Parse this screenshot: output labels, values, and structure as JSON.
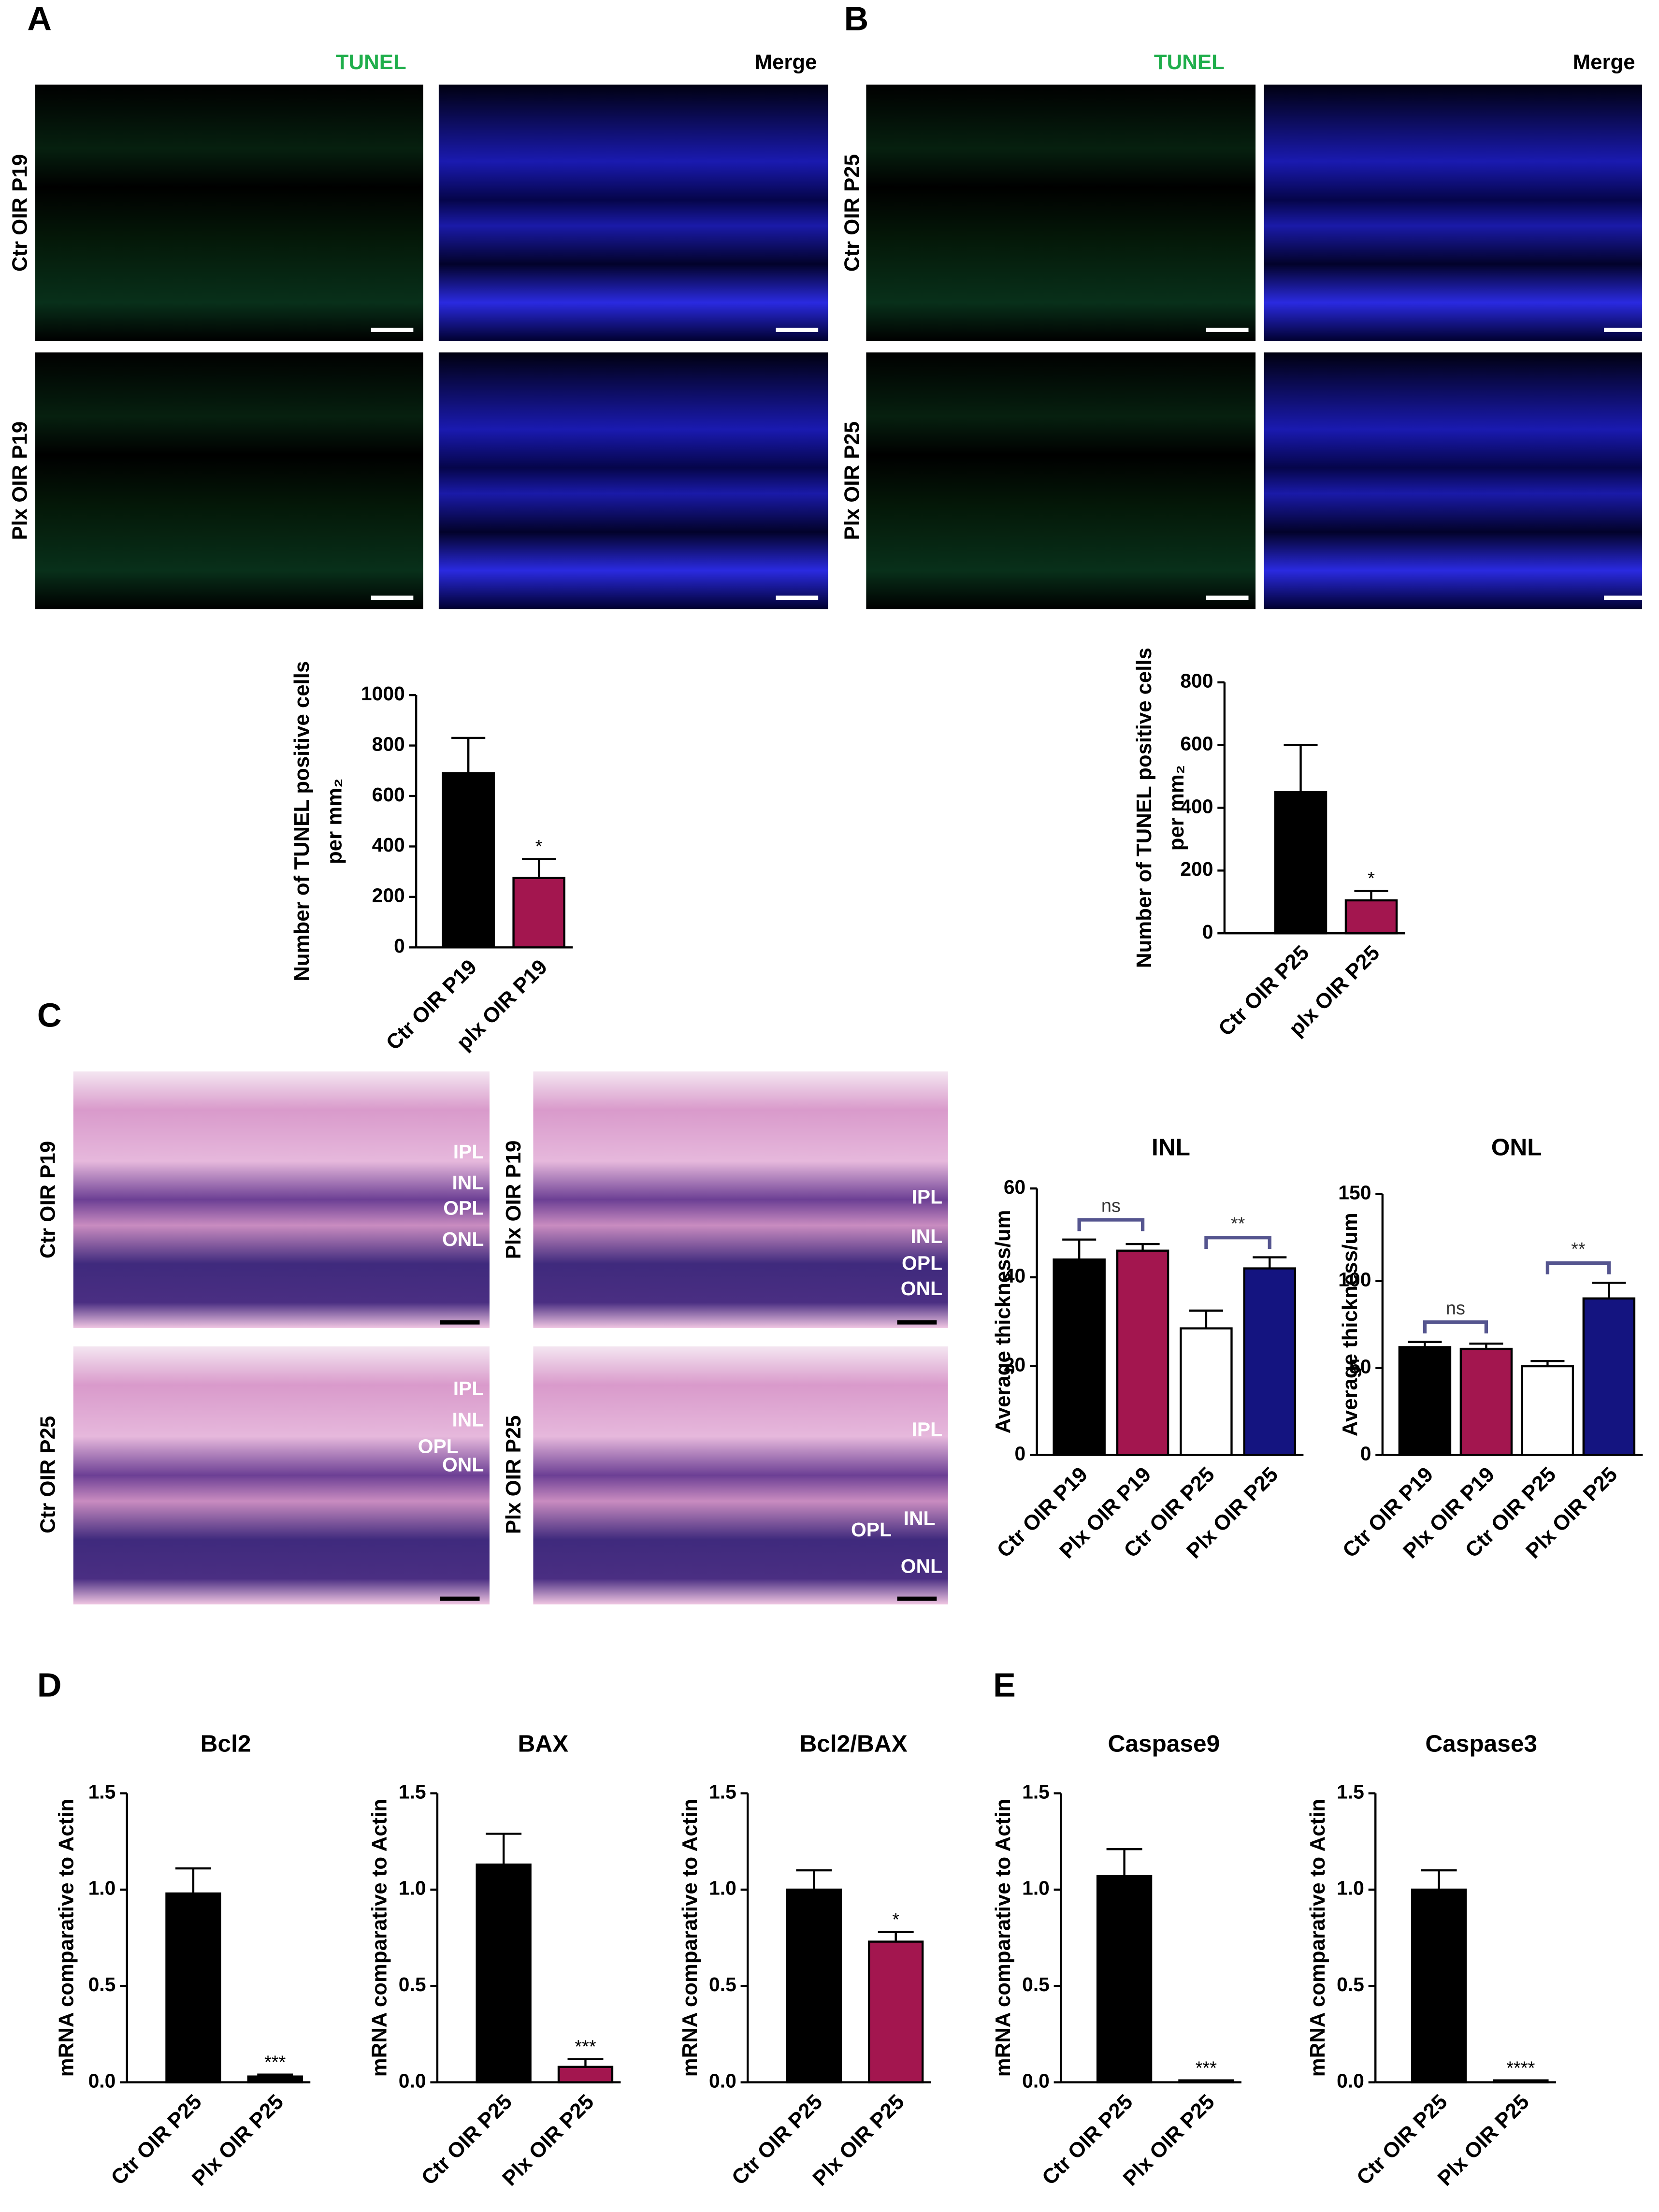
{
  "panel_labels": [
    "A",
    "B",
    "C",
    "D",
    "E"
  ],
  "tunel_images": {
    "A": {
      "columns": [
        "TUNEL",
        "Merge"
      ],
      "rows": [
        "Ctr OIR P19",
        "Plx OIR P19"
      ]
    },
    "B": {
      "columns": [
        "TUNEL",
        "Merge"
      ],
      "rows": [
        "Ctr OIR P25",
        "Plx OIR P25"
      ]
    }
  },
  "he_images": [
    {
      "label": "Ctr OIR P19",
      "layers": [
        "IPL",
        "INL",
        "OPL",
        "ONL"
      ]
    },
    {
      "label": "Plx OIR P19",
      "layers": [
        "IPL",
        "INL",
        "OPL",
        "ONL"
      ]
    },
    {
      "label": "Ctr OIR P25",
      "layers": [
        "IPL",
        "INL",
        "OPL",
        "ONL"
      ]
    },
    {
      "label": "Plx OIR P25",
      "layers": [
        "IPL",
        "INL",
        "OPL",
        "ONL"
      ]
    }
  ],
  "chart_data": [
    {
      "type": "bar",
      "ylabel": [
        "Number of TUNEL positive cells",
        "per mm₂"
      ],
      "categories": [
        "Ctr OIR P19",
        "plx OIR P19"
      ],
      "values": [
        690,
        275
      ],
      "errors": [
        140,
        75
      ],
      "colors": [
        "#000000",
        "#a3164f"
      ],
      "significance": [
        null,
        "*"
      ],
      "ylim": [
        0,
        1000
      ],
      "yticks": [
        0,
        200,
        400,
        600,
        800,
        1000
      ]
    },
    {
      "type": "bar",
      "ylabel": [
        "Number of TUNEL positive cells",
        "per mm₂"
      ],
      "categories": [
        "Ctr OIR P25",
        "plx OIR P25"
      ],
      "values": [
        450,
        105
      ],
      "errors": [
        150,
        30
      ],
      "colors": [
        "#000000",
        "#a3164f"
      ],
      "significance": [
        null,
        "*"
      ],
      "ylim": [
        0,
        800
      ],
      "yticks": [
        0,
        200,
        400,
        600,
        800
      ]
    },
    {
      "type": "bar",
      "title": "INL",
      "ylabel": "Average thickness/um",
      "categories": [
        "Ctr OIR P19",
        "Plx OIR P19",
        "Ctr OIR P25",
        "Plx OIR P25"
      ],
      "values": [
        44,
        46,
        28.5,
        42
      ],
      "errors": [
        4.5,
        1.5,
        4,
        2.5
      ],
      "colors": [
        "#000000",
        "#a3164f",
        "#ffffff",
        "#141480"
      ],
      "brackets": [
        {
          "label": "ns",
          "categories": [
            "Ctr OIR P19",
            "Plx OIR P19"
          ]
        },
        {
          "label": "**",
          "categories": [
            "Ctr OIR P25",
            "Plx OIR P25"
          ]
        }
      ],
      "bracket_color": "#55558f",
      "ylim": [
        0,
        60
      ],
      "yticks": [
        0,
        20,
        40,
        60
      ]
    },
    {
      "type": "bar",
      "title": "ONL",
      "ylabel": "Average thickness/um",
      "categories": [
        "Ctr OIR P19",
        "Plx OIR P19",
        "Ctr OIR P25",
        "Plx OIR P25"
      ],
      "values": [
        62,
        61,
        51,
        90
      ],
      "errors": [
        3,
        3,
        3,
        9
      ],
      "colors": [
        "#000000",
        "#a3164f",
        "#ffffff",
        "#141480"
      ],
      "brackets": [
        {
          "label": "ns",
          "categories": [
            "Ctr OIR P19",
            "Plx OIR P19"
          ]
        },
        {
          "label": "**",
          "categories": [
            "Ctr OIR P25",
            "Plx OIR P25"
          ]
        }
      ],
      "bracket_color": "#55558f",
      "ylim": [
        0,
        150
      ],
      "yticks": [
        0,
        50,
        100,
        150
      ]
    },
    {
      "type": "bar",
      "title": "Bcl2",
      "ylabel": "mRNA comparative to Actin",
      "categories": [
        "Ctr OIR P25",
        "Plx OIR P25"
      ],
      "values": [
        0.98,
        0.03
      ],
      "errors": [
        0.13,
        0.01
      ],
      "colors": [
        "#000000",
        "#000000"
      ],
      "significance": [
        null,
        "***"
      ],
      "ylim": [
        0,
        1.5
      ],
      "yticks": [
        {
          "value": 0,
          "label": "0.0"
        },
        0.5,
        {
          "value": 1,
          "label": "1.0"
        },
        1.5
      ]
    },
    {
      "type": "bar",
      "title": "BAX",
      "ylabel": "mRNA comparative to Actin",
      "categories": [
        "Ctr OIR P25",
        "Plx OIR P25"
      ],
      "values": [
        1.13,
        0.08
      ],
      "errors": [
        0.16,
        0.04
      ],
      "colors": [
        "#000000",
        "#a3164f"
      ],
      "significance": [
        null,
        "***"
      ],
      "ylim": [
        0,
        1.5
      ],
      "yticks": [
        {
          "value": 0,
          "label": "0.0"
        },
        0.5,
        {
          "value": 1,
          "label": "1.0"
        },
        1.5
      ]
    },
    {
      "type": "bar",
      "title": "Bcl2/BAX",
      "ylabel": "mRNA comparative to Actin",
      "categories": [
        "Ctr OIR P25",
        "Plx OIR P25"
      ],
      "values": [
        1.0,
        0.73
      ],
      "errors": [
        0.1,
        0.05
      ],
      "colors": [
        "#000000",
        "#a3164f"
      ],
      "significance": [
        null,
        "*"
      ],
      "ylim": [
        0,
        1.5
      ],
      "yticks": [
        {
          "value": 0,
          "label": "0.0"
        },
        0.5,
        {
          "value": 1,
          "label": "1.0"
        },
        1.5
      ]
    },
    {
      "type": "bar",
      "title": "Caspase9",
      "ylabel": "mRNA comparative to Actin",
      "categories": [
        "Ctr OIR P25",
        "Plx OIR P25"
      ],
      "values": [
        1.07,
        0.01
      ],
      "errors": [
        0.14,
        0
      ],
      "colors": [
        "#000000",
        "#000000"
      ],
      "significance": [
        null,
        "***"
      ],
      "ylim": [
        0,
        1.5
      ],
      "yticks": [
        {
          "value": 0,
          "label": "0.0"
        },
        0.5,
        {
          "value": 1,
          "label": "1.0"
        },
        1.5
      ]
    },
    {
      "type": "bar",
      "title": "Caspase3",
      "ylabel": "mRNA comparative to Actin",
      "categories": [
        "Ctr OIR P25",
        "Plx OIR P25"
      ],
      "values": [
        1.0,
        0.01
      ],
      "errors": [
        0.1,
        0
      ],
      "colors": [
        "#000000",
        "#000000"
      ],
      "significance": [
        null,
        "****"
      ],
      "ylim": [
        0,
        1.5
      ],
      "yticks": [
        {
          "value": 0,
          "label": "0.0"
        },
        0.5,
        {
          "value": 1,
          "label": "1.0"
        },
        1.5
      ]
    }
  ]
}
